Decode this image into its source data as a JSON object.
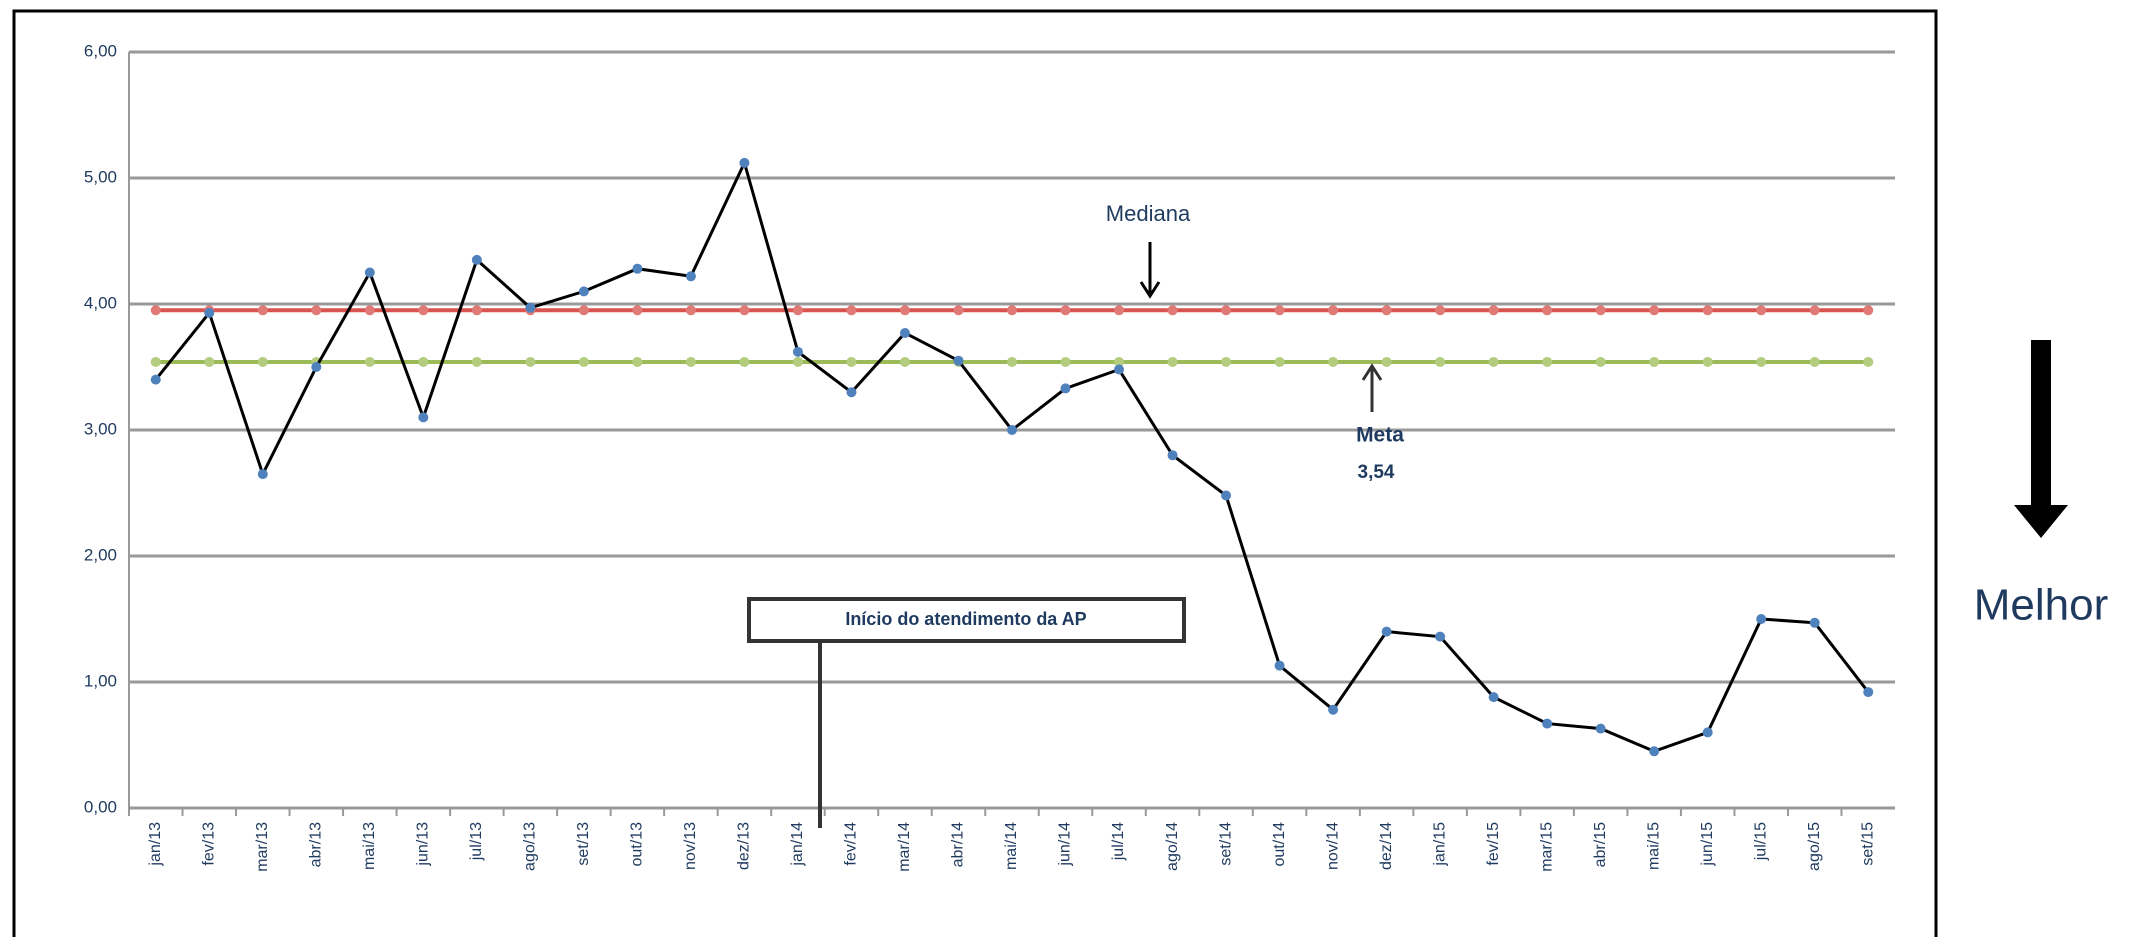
{
  "chart_data": {
    "type": "line",
    "categories": [
      "jan/13",
      "fev/13",
      "mar/13",
      "abr/13",
      "mai/13",
      "jun/13",
      "jul/13",
      "ago/13",
      "set/13",
      "out/13",
      "nov/13",
      "dez/13",
      "jan/14",
      "fev/14",
      "mar/14",
      "abr/14",
      "mai/14",
      "jun/14",
      "jul/14",
      "ago/14",
      "set/14",
      "out/14",
      "nov/14",
      "dez/14",
      "jan/15",
      "fev/15",
      "mar/15",
      "abr/15",
      "mai/15",
      "jun/15",
      "jul/15",
      "ago/15",
      "set/15"
    ],
    "series": [
      {
        "color": "#000000",
        "marker_color": "#4f81bd",
        "values": [
          3.4,
          3.93,
          2.65,
          3.5,
          4.25,
          3.1,
          4.35,
          3.97,
          4.1,
          4.28,
          4.22,
          5.12,
          3.62,
          3.3,
          3.77,
          3.55,
          3.0,
          3.33,
          3.48,
          2.8,
          2.48,
          1.13,
          0.78,
          1.4,
          1.36,
          0.88,
          0.67,
          0.63,
          0.45,
          0.6,
          1.5,
          1.47,
          0.92
        ]
      },
      {
        "color": "#d9534f",
        "marker_color": "#e07a76",
        "values": [
          3.95,
          3.95,
          3.95,
          3.95,
          3.95,
          3.95,
          3.95,
          3.95,
          3.95,
          3.95,
          3.95,
          3.95,
          3.95,
          3.95,
          3.95,
          3.95,
          3.95,
          3.95,
          3.95,
          3.95,
          3.95,
          3.95,
          3.95,
          3.95,
          3.95,
          3.95,
          3.95,
          3.95,
          3.95,
          3.95,
          3.95,
          3.95,
          3.95
        ]
      },
      {
        "color": "#9bbb59",
        "marker_color": "#b3cc7e",
        "values": [
          3.54,
          3.54,
          3.54,
          3.54,
          3.54,
          3.54,
          3.54,
          3.54,
          3.54,
          3.54,
          3.54,
          3.54,
          3.54,
          3.54,
          3.54,
          3.54,
          3.54,
          3.54,
          3.54,
          3.54,
          3.54,
          3.54,
          3.54,
          3.54,
          3.54,
          3.54,
          3.54,
          3.54,
          3.54,
          3.54,
          3.54,
          3.54,
          3.54
        ]
      }
    ],
    "ylim": [
      0,
      6
    ],
    "yticks": [
      {
        "value": 0,
        "label": "0,00"
      },
      {
        "value": 1,
        "label": "1,00"
      },
      {
        "value": 2,
        "label": "2,00"
      },
      {
        "value": 3,
        "label": "3,00"
      },
      {
        "value": 4,
        "label": "4,00"
      },
      {
        "value": 5,
        "label": "5,00"
      },
      {
        "value": 6,
        "label": "6,00"
      }
    ],
    "grid": true,
    "annotations": [
      "Mediana",
      "Meta",
      "3,54",
      "Início do atendimento da AP",
      "Melhor"
    ]
  }
}
